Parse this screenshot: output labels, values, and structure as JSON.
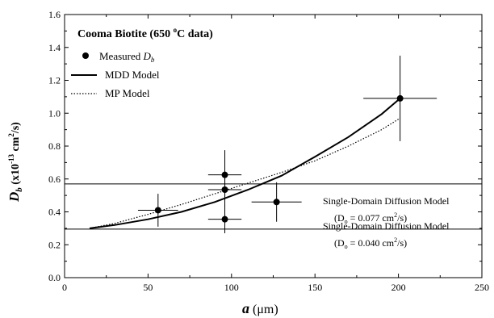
{
  "chart_data": {
    "type": "scatter",
    "title": "Cooma Biotite (650 °C data)",
    "title_main": "Cooma Biotite (650 ",
    "title_sup": "o",
    "title_end": "C data)",
    "xlabel": "a (μm)",
    "xlabel_var": "a",
    "xlabel_unit": " (μm)",
    "ylabel": "Db (x10-13 cm2/s)",
    "ylabel_var": "D",
    "ylabel_sub": "b",
    "ylabel_mid": " (x10",
    "ylabel_exp": "-13",
    "ylabel_unit": " cm",
    "ylabel_unit_exp": "2",
    "ylabel_tail": "/s)",
    "xlim": [
      0,
      250
    ],
    "ylim": [
      0.0,
      1.6
    ],
    "xticks": [
      "0",
      "50",
      "100",
      "150",
      "200",
      "250"
    ],
    "yticks": [
      "0.0",
      "0.2",
      "0.4",
      "0.6",
      "0.8",
      "1.0",
      "1.2",
      "1.4",
      "1.6"
    ],
    "grid": false,
    "legend_position": "top-left",
    "legend": {
      "measured_label": "Measured ",
      "measured_var": "D",
      "measured_sub": "b",
      "mdd_label": "MDD Model",
      "mp_label": "MP  Model"
    },
    "measured": [
      {
        "x": 56,
        "y": 0.41,
        "xerr": 12,
        "yerr": 0.1
      },
      {
        "x": 96,
        "y": 0.625,
        "xerr": 10,
        "yerr": 0.15
      },
      {
        "x": 96,
        "y": 0.535,
        "xerr": 10,
        "yerr": 0.1
      },
      {
        "x": 96,
        "y": 0.355,
        "xerr": 10,
        "yerr": 0.085
      },
      {
        "x": 127,
        "y": 0.46,
        "xerr": 15,
        "yerr": 0.12
      },
      {
        "x": 201,
        "y": 1.09,
        "xerr": 22,
        "yerr": 0.26
      }
    ],
    "mdd_model": {
      "name": "MDD Model",
      "x": [
        15,
        30,
        50,
        70,
        90,
        110,
        130,
        150,
        170,
        190,
        201
      ],
      "y": [
        0.3,
        0.32,
        0.355,
        0.4,
        0.46,
        0.535,
        0.62,
        0.735,
        0.855,
        0.995,
        1.09
      ]
    },
    "mp_model": {
      "name": "MP  Model",
      "x": [
        15,
        30,
        50,
        70,
        90,
        110,
        130,
        150,
        170,
        190,
        201
      ],
      "y": [
        0.3,
        0.33,
        0.385,
        0.445,
        0.51,
        0.575,
        0.64,
        0.71,
        0.8,
        0.9,
        0.97
      ]
    },
    "single_domain_lines": [
      {
        "y": 0.57,
        "label": "Single-Domain Diffusion Model",
        "d_text": "(D",
        "d_sub": "o",
        "d_val": " = 0.077 cm",
        "d_exp": "2",
        "d_tail": "/s)"
      },
      {
        "y": 0.295,
        "label": "Single-Domain Diffusion Model",
        "d_text": "(D",
        "d_sub": "o",
        "d_val": " = 0.040 cm",
        "d_exp": "2",
        "d_tail": "/s)"
      }
    ]
  }
}
